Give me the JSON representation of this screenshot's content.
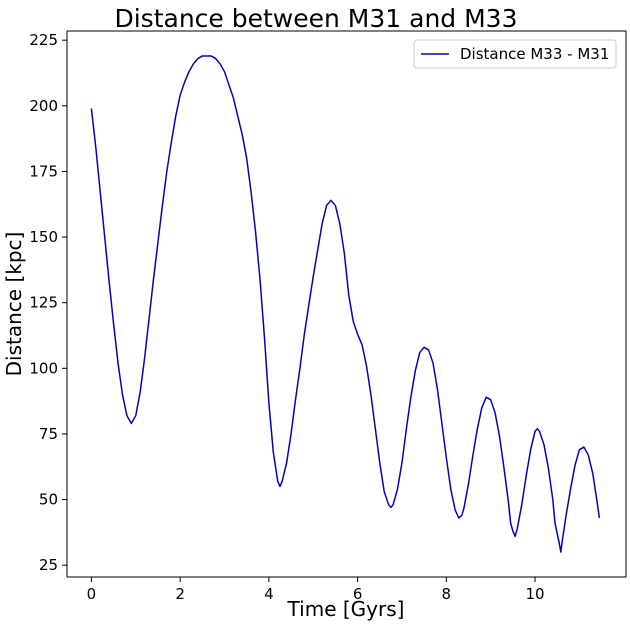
{
  "chart_data": {
    "type": "line",
    "title": "Distance between M31 and M33",
    "xlabel": "Time [Gyrs]",
    "ylabel": "Distance [kpc]",
    "xlim": [
      -0.55,
      12.05
    ],
    "ylim": [
      20.5,
      228.5
    ],
    "xticks": [
      0,
      2,
      4,
      6,
      8,
      10
    ],
    "yticks": [
      25,
      50,
      75,
      100,
      125,
      150,
      175,
      200,
      225
    ],
    "grid": false,
    "legend_position": "top-right",
    "series": [
      {
        "name": "Distance M33 - M31",
        "color": "#0000cd",
        "points": [
          [
            0.0,
            199
          ],
          [
            0.1,
            184
          ],
          [
            0.2,
            167
          ],
          [
            0.3,
            150
          ],
          [
            0.4,
            133
          ],
          [
            0.5,
            117
          ],
          [
            0.6,
            102
          ],
          [
            0.7,
            90
          ],
          [
            0.8,
            82
          ],
          [
            0.9,
            79
          ],
          [
            1.0,
            82
          ],
          [
            1.1,
            91
          ],
          [
            1.2,
            104
          ],
          [
            1.3,
            119
          ],
          [
            1.4,
            134
          ],
          [
            1.5,
            148
          ],
          [
            1.6,
            162
          ],
          [
            1.7,
            175
          ],
          [
            1.8,
            186
          ],
          [
            1.9,
            196
          ],
          [
            2.0,
            204
          ],
          [
            2.1,
            209
          ],
          [
            2.2,
            213
          ],
          [
            2.3,
            216
          ],
          [
            2.4,
            218
          ],
          [
            2.5,
            219
          ],
          [
            2.6,
            219
          ],
          [
            2.7,
            219
          ],
          [
            2.8,
            218
          ],
          [
            2.9,
            216
          ],
          [
            3.0,
            213
          ],
          [
            3.1,
            208
          ],
          [
            3.2,
            203
          ],
          [
            3.3,
            196
          ],
          [
            3.4,
            189
          ],
          [
            3.5,
            180
          ],
          [
            3.6,
            167
          ],
          [
            3.7,
            152
          ],
          [
            3.8,
            134
          ],
          [
            3.9,
            112
          ],
          [
            4.0,
            87
          ],
          [
            4.1,
            68
          ],
          [
            4.2,
            57
          ],
          [
            4.25,
            55
          ],
          [
            4.3,
            57
          ],
          [
            4.4,
            64
          ],
          [
            4.5,
            75
          ],
          [
            4.6,
            88
          ],
          [
            4.7,
            100
          ],
          [
            4.8,
            113
          ],
          [
            4.9,
            124
          ],
          [
            5.0,
            135
          ],
          [
            5.1,
            145
          ],
          [
            5.2,
            155
          ],
          [
            5.3,
            162
          ],
          [
            5.4,
            164
          ],
          [
            5.5,
            162
          ],
          [
            5.6,
            155
          ],
          [
            5.7,
            144
          ],
          [
            5.8,
            128
          ],
          [
            5.9,
            118
          ],
          [
            6.0,
            113
          ],
          [
            6.1,
            109
          ],
          [
            6.2,
            101
          ],
          [
            6.3,
            90
          ],
          [
            6.4,
            77
          ],
          [
            6.5,
            64
          ],
          [
            6.6,
            53
          ],
          [
            6.7,
            48
          ],
          [
            6.75,
            47
          ],
          [
            6.8,
            48
          ],
          [
            6.9,
            54
          ],
          [
            7.0,
            64
          ],
          [
            7.1,
            77
          ],
          [
            7.2,
            89
          ],
          [
            7.3,
            99
          ],
          [
            7.4,
            106
          ],
          [
            7.5,
            108
          ],
          [
            7.6,
            107
          ],
          [
            7.7,
            102
          ],
          [
            7.8,
            92
          ],
          [
            7.9,
            79
          ],
          [
            8.0,
            66
          ],
          [
            8.1,
            54
          ],
          [
            8.2,
            46
          ],
          [
            8.28,
            43
          ],
          [
            8.35,
            44
          ],
          [
            8.4,
            47
          ],
          [
            8.5,
            56
          ],
          [
            8.6,
            67
          ],
          [
            8.7,
            77
          ],
          [
            8.8,
            85
          ],
          [
            8.9,
            89
          ],
          [
            9.0,
            88
          ],
          [
            9.1,
            83
          ],
          [
            9.2,
            74
          ],
          [
            9.3,
            62
          ],
          [
            9.4,
            49
          ],
          [
            9.45,
            41
          ],
          [
            9.5,
            38
          ],
          [
            9.55,
            36
          ],
          [
            9.6,
            39
          ],
          [
            9.7,
            48
          ],
          [
            9.8,
            59
          ],
          [
            9.9,
            69
          ],
          [
            10.0,
            76
          ],
          [
            10.05,
            77
          ],
          [
            10.1,
            76
          ],
          [
            10.2,
            71
          ],
          [
            10.3,
            62
          ],
          [
            10.4,
            50
          ],
          [
            10.45,
            41
          ],
          [
            10.5,
            37
          ],
          [
            10.55,
            33
          ],
          [
            10.58,
            30
          ],
          [
            10.62,
            35
          ],
          [
            10.7,
            44
          ],
          [
            10.8,
            54
          ],
          [
            10.9,
            63
          ],
          [
            11.0,
            69
          ],
          [
            11.1,
            70
          ],
          [
            11.2,
            67
          ],
          [
            11.3,
            60
          ],
          [
            11.4,
            49
          ],
          [
            11.45,
            43
          ]
        ]
      }
    ]
  }
}
